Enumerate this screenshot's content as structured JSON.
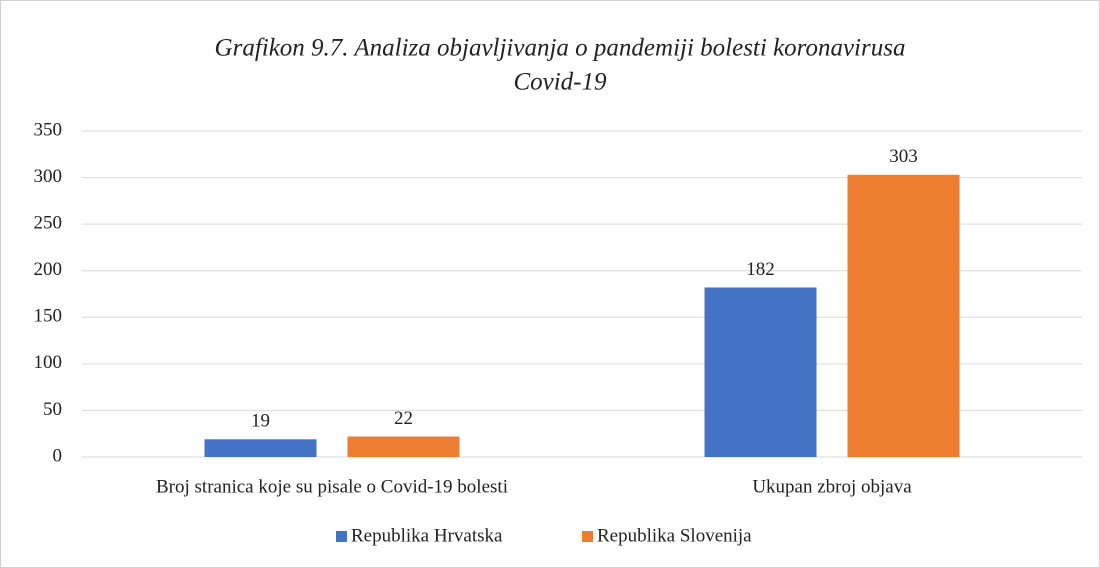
{
  "chart_data": {
    "type": "bar",
    "title": [
      "Grafikon 9.7. Analiza objavljivanja o pandemiji bolesti koronavirusa",
      "Covid-19"
    ],
    "categories": [
      "Broj stranica koje su pisale  o Covid-19 bolesti",
      "Ukupan zbroj objava"
    ],
    "series": [
      {
        "name": "Republika Hrvatska",
        "color": "#4472c4",
        "values": [
          19,
          182
        ]
      },
      {
        "name": "Republika Slovenija",
        "color": "#ed7d31",
        "values": [
          22,
          303
        ]
      }
    ],
    "ylim": [
      0,
      350
    ],
    "yticks": [
      0,
      50,
      100,
      150,
      200,
      250,
      300,
      350
    ],
    "grid": true,
    "legend": "bottom"
  }
}
